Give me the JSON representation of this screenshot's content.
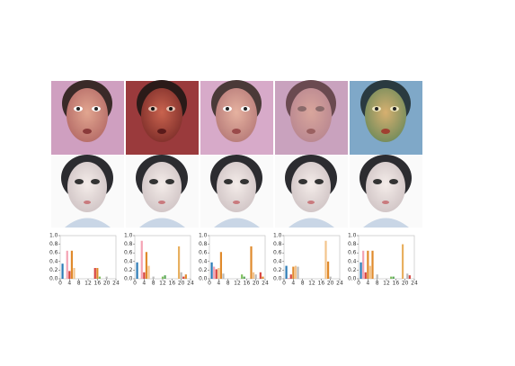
{
  "chart_data": [
    {
      "type": "bar",
      "x": [
        1,
        3,
        4,
        5,
        6,
        15,
        16,
        17,
        20
      ],
      "values": [
        0.35,
        0.65,
        0.18,
        0.65,
        0.25,
        0.25,
        0.25,
        0.05,
        0.05
      ],
      "colors": [
        "#2c7bb6",
        "#f4a3b4",
        "#d7443e",
        "#e08a2c",
        "#f3c48c",
        "#d7443e",
        "#e08a2c",
        "#7fbf5f",
        "#bbbbbb"
      ],
      "xlim": [
        0,
        24
      ],
      "xticks": [
        0,
        4,
        8,
        12,
        16,
        20,
        24
      ],
      "ylim": [
        0,
        1
      ],
      "yticks": [
        {
          "value": 0,
          "label": "0.0"
        },
        {
          "value": 0.2,
          "label": "0.2"
        },
        {
          "value": 0.4,
          "label": "0.4"
        },
        {
          "value": 0.6,
          "label": "0.6"
        },
        {
          "value": 0.8,
          "label": "0.8"
        },
        {
          "value": 1,
          "label": "1.0"
        }
      ]
    },
    {
      "type": "bar",
      "x": [
        1,
        3,
        4,
        5,
        6,
        8,
        12,
        13,
        19,
        20,
        21,
        22
      ],
      "values": [
        0.38,
        0.88,
        0.15,
        0.62,
        0.3,
        0.05,
        0.05,
        0.08,
        0.75,
        0.15,
        0.05,
        0.1
      ],
      "colors": [
        "#2c7bb6",
        "#f4a3b4",
        "#d7443e",
        "#e08a2c",
        "#f3c48c",
        "#bbbbbb",
        "#7fbf5f",
        "#5aa85a",
        "#e8b060",
        "#bbbbbb",
        "#d7443e",
        "#e08a2c"
      ],
      "xlim": [
        0,
        24
      ],
      "xticks": [
        0,
        4,
        8,
        12,
        16,
        20,
        24
      ],
      "ylim": [
        0,
        1
      ],
      "yticks": [
        {
          "value": 0,
          "label": "0.0"
        },
        {
          "value": 0.2,
          "label": "0.2"
        },
        {
          "value": 0.4,
          "label": "0.4"
        },
        {
          "value": 0.6,
          "label": "0.6"
        },
        {
          "value": 0.8,
          "label": "0.8"
        },
        {
          "value": 1,
          "label": "1.0"
        }
      ]
    },
    {
      "type": "bar",
      "x": [
        1,
        2,
        3,
        4,
        5,
        6,
        14,
        15,
        18,
        19,
        20,
        22,
        23
      ],
      "values": [
        0.38,
        0.28,
        0.22,
        0.25,
        0.62,
        0.12,
        0.1,
        0.05,
        0.75,
        0.15,
        0.1,
        0.15,
        0.05
      ],
      "colors": [
        "#2c7bb6",
        "#f4a3b4",
        "#d7443e",
        "#f3c48c",
        "#e08a2c",
        "#bbbbbb",
        "#7fbf5f",
        "#5aa85a",
        "#e08a2c",
        "#f3c48c",
        "#bbbbbb",
        "#d7443e",
        "#e08a2c"
      ],
      "xlim": [
        0,
        24
      ],
      "xticks": [
        0,
        4,
        8,
        12,
        16,
        20,
        24
      ],
      "ylim": [
        0,
        1
      ],
      "yticks": [
        {
          "value": 0,
          "label": "0.0"
        },
        {
          "value": 0.2,
          "label": "0.2"
        },
        {
          "value": 0.4,
          "label": "0.4"
        },
        {
          "value": 0.6,
          "label": "0.6"
        },
        {
          "value": 0.8,
          "label": "0.8"
        },
        {
          "value": 1,
          "label": "1.0"
        }
      ]
    },
    {
      "type": "bar",
      "x": [
        1,
        2,
        3,
        4,
        5,
        6,
        18,
        19,
        20
      ],
      "values": [
        0.3,
        0.02,
        0.1,
        0.28,
        0.3,
        0.28,
        0.88,
        0.4,
        0.05
      ],
      "colors": [
        "#2c7bb6",
        "#f4a3b4",
        "#d7443e",
        "#e08a2c",
        "#f3c48c",
        "#bbbbbb",
        "#f3c48c",
        "#e08a2c",
        "#bbbbbb"
      ],
      "xlim": [
        0,
        24
      ],
      "xticks": [
        0,
        4,
        8,
        12,
        16,
        20,
        24
      ],
      "ylim": [
        0,
        1
      ],
      "yticks": [
        {
          "value": 0,
          "label": "0.0"
        },
        {
          "value": 0.2,
          "label": "0.2"
        },
        {
          "value": 0.4,
          "label": "0.4"
        },
        {
          "value": 0.6,
          "label": "0.6"
        },
        {
          "value": 0.8,
          "label": "0.8"
        },
        {
          "value": 1,
          "label": "1.0"
        }
      ]
    },
    {
      "type": "bar",
      "x": [
        1,
        2,
        3,
        4,
        5,
        6,
        8,
        14,
        15,
        19,
        21,
        22
      ],
      "values": [
        0.38,
        0.65,
        0.15,
        0.65,
        0.3,
        0.65,
        0.1,
        0.05,
        0.05,
        0.8,
        0.12,
        0.08
      ],
      "colors": [
        "#2c7bb6",
        "#f4a3b4",
        "#d7443e",
        "#e08a2c",
        "#f3c48c",
        "#e08a2c",
        "#bbbbbb",
        "#7fbf5f",
        "#5aa85a",
        "#e8b060",
        "#bbbbbb",
        "#d7443e"
      ],
      "xlim": [
        0,
        24
      ],
      "xticks": [
        0,
        4,
        8,
        12,
        16,
        20,
        24
      ],
      "ylim": [
        0,
        1
      ],
      "yticks": [
        {
          "value": 0,
          "label": "0.0"
        },
        {
          "value": 0.2,
          "label": "0.2"
        },
        {
          "value": 0.4,
          "label": "0.4"
        },
        {
          "value": 0.6,
          "label": "0.6"
        },
        {
          "value": 0.8,
          "label": "0.8"
        },
        {
          "value": 1,
          "label": "1.0"
        }
      ]
    }
  ]
}
